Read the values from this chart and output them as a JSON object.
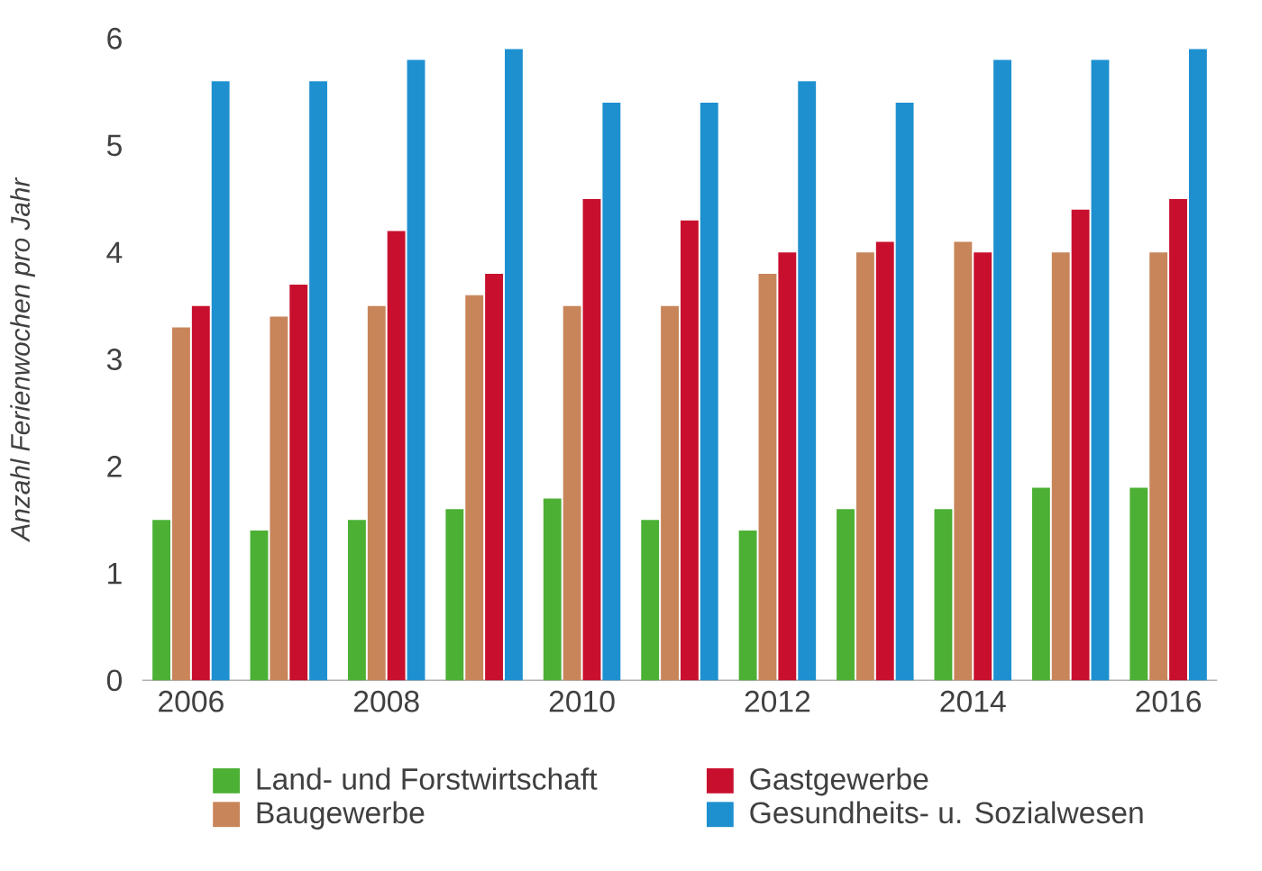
{
  "chart_data": {
    "type": "bar",
    "ylabel": "Anzahl Ferienwochen pro Jahr",
    "x": [
      2006,
      2007,
      2008,
      2009,
      2010,
      2011,
      2012,
      2013,
      2014,
      2015,
      2016
    ],
    "xlim": [
      2005.5,
      2016.5
    ],
    "xticks": [
      2006,
      2008,
      2010,
      2012,
      2014,
      2016
    ],
    "ylim": [
      0,
      6
    ],
    "yticks": [
      0,
      1,
      2,
      3,
      4,
      5,
      6
    ],
    "legend": "bottom",
    "series": [
      {
        "name": "Land- und Forstwirtschaft",
        "color": "#4cb034",
        "values": [
          1.5,
          1.4,
          1.5,
          1.6,
          1.7,
          1.5,
          1.4,
          1.6,
          1.6,
          1.8,
          1.8
        ]
      },
      {
        "name": "Baugewerbe",
        "color": "#c8855a",
        "values": [
          3.3,
          3.4,
          3.5,
          3.6,
          3.5,
          3.5,
          3.8,
          4.0,
          4.1,
          4.0,
          4.0
        ]
      },
      {
        "name": "Gastgewerbe",
        "color": "#c8102e",
        "values": [
          3.5,
          3.7,
          4.2,
          3.8,
          4.5,
          4.3,
          4.0,
          4.1,
          4.0,
          4.4,
          4.5
        ]
      },
      {
        "name": "Gesundheits- u. Sozialwesen",
        "color": "#1e90d0",
        "values": [
          5.6,
          5.6,
          5.8,
          5.9,
          5.4,
          5.4,
          5.6,
          5.4,
          5.8,
          5.8,
          5.9
        ]
      }
    ]
  }
}
